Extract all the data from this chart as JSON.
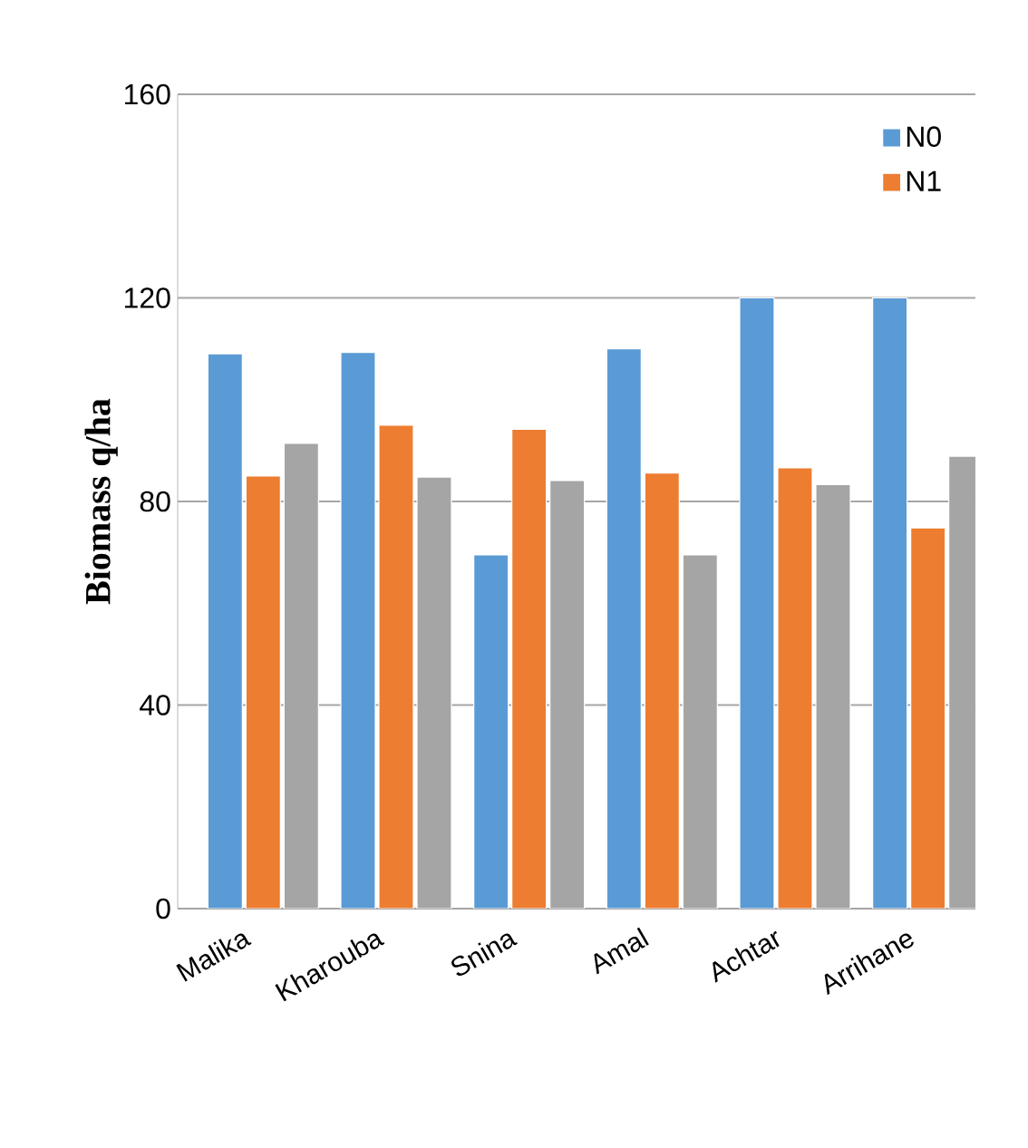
{
  "chart_data": {
    "type": "bar",
    "ylabel": "Biomass q/ha",
    "categories": [
      "Malika",
      "Kharouba",
      "Snina",
      "Amal",
      "Achtar",
      "Arrihane"
    ],
    "series": [
      {
        "name": "N0",
        "color": "#5b9bd5",
        "values": [
          109.0,
          109.3,
          69.5,
          110.0,
          120,
          120
        ]
      },
      {
        "name": "N1",
        "color": "#ed7d31",
        "values": [
          85.0,
          95.0,
          94.2,
          85.6,
          86.6,
          74.8
        ]
      },
      {
        "color": "#a5a5a5",
        "values": [
          91.4,
          84.8,
          84.1,
          69.5,
          83.3,
          88.9
        ]
      }
    ],
    "ylim": [
      0,
      160
    ],
    "yticks": [
      0,
      40,
      80,
      120,
      160
    ],
    "grid": "y",
    "legend": "top right"
  }
}
